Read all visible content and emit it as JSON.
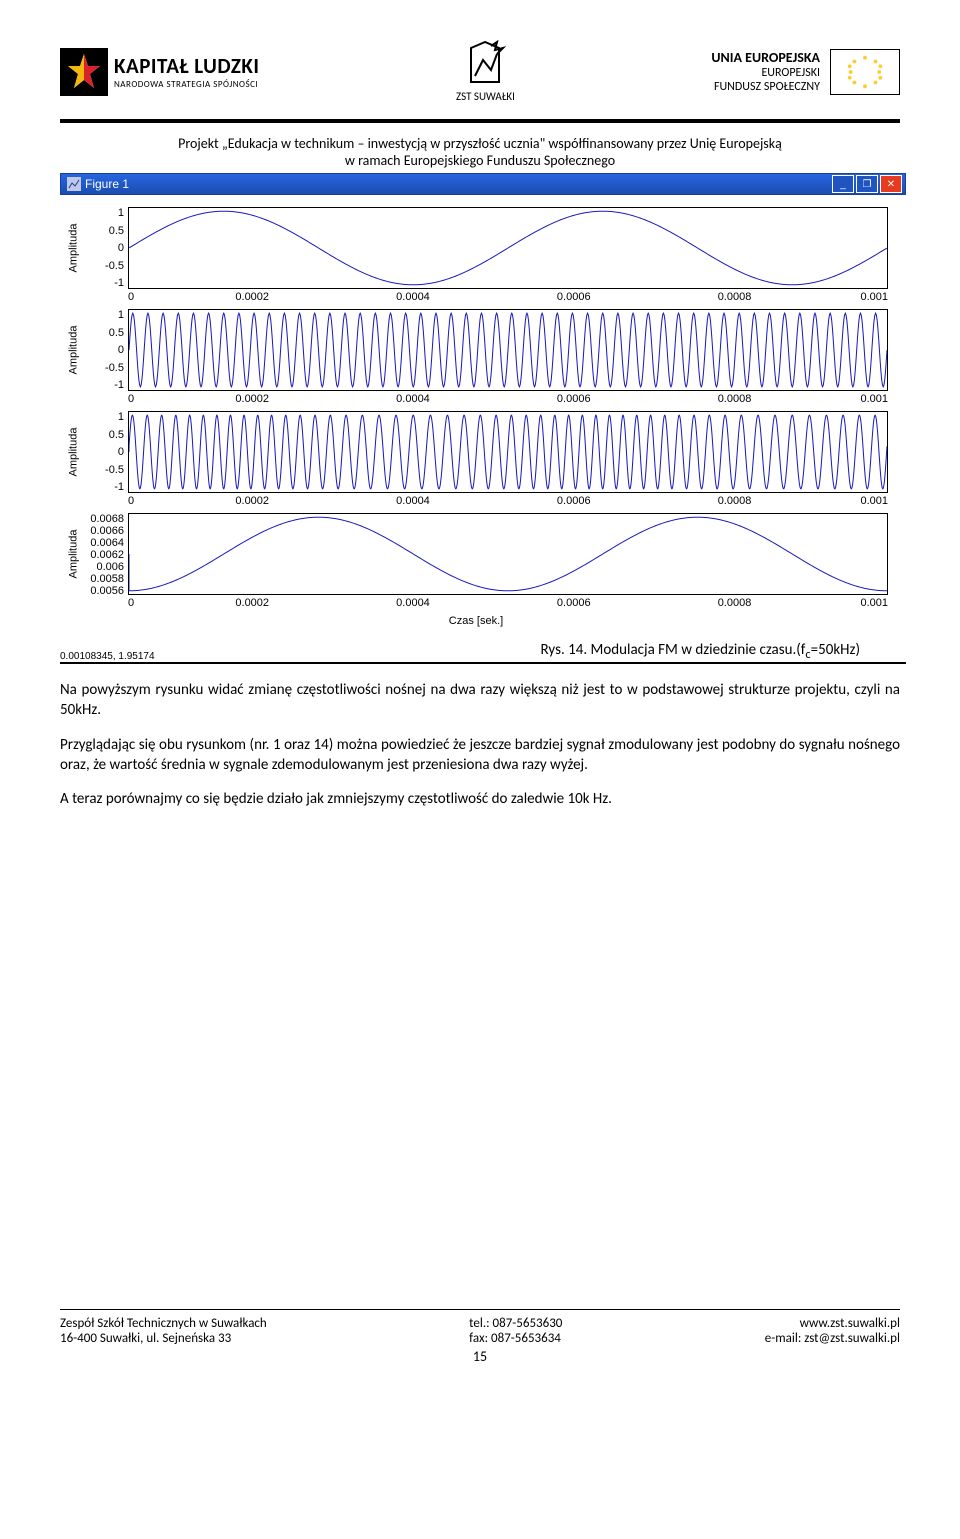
{
  "header": {
    "left_title": "KAPITAŁ LUDZKI",
    "left_sub": "NARODOWA STRATEGIA SPÓJNOŚCI",
    "center_label": "ZST SUWAŁKI",
    "right_title": "UNIA EUROPEJSKA",
    "right_sub1": "EUROPEJSKI",
    "right_sub2": "FUNDUSZ SPOŁECZNY"
  },
  "project": {
    "line1": "Projekt „Edukacja w technikum – inwestycją w przyszłość ucznia\" współfinansowany przez Unię Europejską",
    "line2": "w ramach Europejskiego Funduszu Społecznego"
  },
  "window": {
    "title": "Figure 1"
  },
  "charts": {
    "ylabel": "Amplituda",
    "xlabel": "Czas [sek.]",
    "xticks": [
      "0",
      "0.0002",
      "0.0004",
      "0.0006",
      "0.0008",
      "0.001"
    ],
    "plot1": {
      "yticks": [
        "1",
        "0.5",
        "0",
        "-0.5",
        "-1"
      ],
      "cycles": 2,
      "amplitude": 1,
      "stroke": "#1a1abf",
      "stroke_width": 1
    },
    "plot2": {
      "yticks": [
        "1",
        "0.5",
        "0",
        "-0.5",
        "-1"
      ],
      "cycles": 50,
      "amplitude": 1,
      "stroke": "#1a1abf",
      "stroke_width": 1
    },
    "plot3": {
      "yticks": [
        "1",
        "0.5",
        "0",
        "-0.5",
        "-1"
      ],
      "cycles_base": 50,
      "mod_depth": 0.12,
      "mod_cycles": 2,
      "stroke": "#1a1abf",
      "stroke_width": 1
    },
    "plot4": {
      "yticks": [
        "0.0068",
        "0.0066",
        "0.0064",
        "0.0062",
        "0.006",
        "0.0058",
        "0.0056"
      ],
      "cycles": 2,
      "amplitude": 1,
      "phase": 0.75,
      "stroke": "#1a1abf",
      "stroke_width": 1
    }
  },
  "status_text": "0.00108345, 1.95174",
  "caption": "Rys. 14. Modulacja FM w dziedzinie czasu.(fc=50kHz)",
  "body": {
    "p1": "Na powyższym rysunku widać zmianę częstotliwości nośnej na dwa razy większą niż jest to w podstawowej strukturze projektu, czyli na 50kHz.",
    "p2": "Przyglądając się obu rysunkom (nr. 1 oraz 14) można powiedzieć że jeszcze bardziej sygnał zmodulowany jest podobny do sygnału nośnego oraz, że wartość średnia w sygnale zdemodulowanym jest przeniesiona dwa razy wyżej.",
    "p3": "A teraz porównajmy co się będzie działo jak zmniejszymy częstotliwość do zaledwie 10k Hz."
  },
  "footer": {
    "l1": "Zespół Szkół Technicznych w Suwałkach",
    "l2": "16-400 Suwałki, ul. Sejneńska 33",
    "c1": "tel.: 087-5653630",
    "c2": "fax: 087-5653634",
    "r1": "www.zst.suwalki.pl",
    "r2": "e-mail: zst@zst.suwalki.pl",
    "page": "15"
  },
  "style": {
    "left_title_size": 21,
    "left_title_weight": "bold",
    "left_sub_size": 9,
    "center_label_size": 11,
    "right_title_size": 14,
    "right_title_weight": "bold",
    "right_sub_size": 12,
    "hr_thick_height": 4,
    "hr_thick_color": "#000000",
    "titlebar_title_size": 12,
    "status_size": 10
  }
}
